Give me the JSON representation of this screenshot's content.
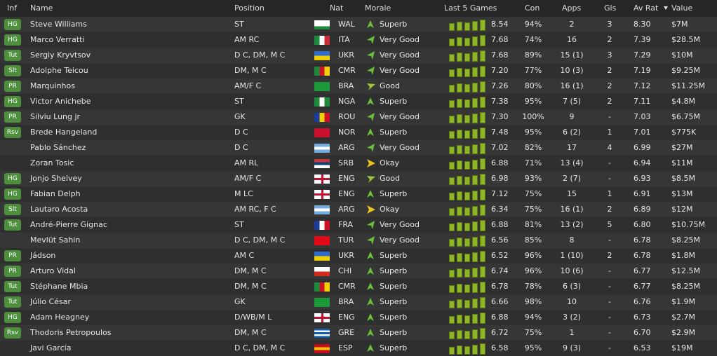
{
  "header": {
    "columns": [
      "Inf",
      "Name",
      "Position",
      "Nat",
      "Morale",
      "Last 5 Games",
      "Con",
      "Apps",
      "Gls",
      "Av Rat",
      "Value"
    ]
  },
  "table": {
    "rows": [
      {
        "inf": "HG",
        "name": "Steve Williams",
        "position": "ST",
        "nat": "WAL",
        "morale": "Superb",
        "form": "8.54",
        "con": "94%",
        "apps": "2",
        "gls": "3",
        "av_rat": "8.30",
        "value": "$7M"
      },
      {
        "inf": "HG",
        "name": "Marco Verratti",
        "position": "AM RC",
        "nat": "ITA",
        "morale": "Very Good",
        "form": "7.68",
        "con": "74%",
        "apps": "16",
        "gls": "2",
        "av_rat": "7.39",
        "value": "$28.5M"
      },
      {
        "inf": "Tut",
        "name": "Sergiy Kryvtsov",
        "position": "D C, DM, M C",
        "nat": "UKR",
        "morale": "Very Good",
        "form": "7.68",
        "con": "89%",
        "apps": "15 (1)",
        "gls": "3",
        "av_rat": "7.29",
        "value": "$10M"
      },
      {
        "inf": "Slt",
        "name": "Adolphe Teicou",
        "position": "DM, M C",
        "nat": "CMR",
        "morale": "Very Good",
        "form": "7.20",
        "con": "77%",
        "apps": "10 (3)",
        "gls": "2",
        "av_rat": "7.19",
        "value": "$9.25M"
      },
      {
        "inf": "PR",
        "name": "Marquinhos",
        "position": "AM/F C",
        "nat": "BRA",
        "morale": "Good",
        "form": "7.26",
        "con": "80%",
        "apps": "16 (1)",
        "gls": "2",
        "av_rat": "7.12",
        "value": "$11.25M"
      },
      {
        "inf": "HG",
        "name": "Victor Anichebe",
        "position": "ST",
        "nat": "NGA",
        "morale": "Superb",
        "form": "7.38",
        "con": "95%",
        "apps": "7 (5)",
        "gls": "2",
        "av_rat": "7.11",
        "value": "$4.8M"
      },
      {
        "inf": "PR",
        "name": "Silviu Lung jr",
        "position": "GK",
        "nat": "ROU",
        "morale": "Very Good",
        "form": "7.30",
        "con": "100%",
        "apps": "9",
        "gls": "-",
        "av_rat": "7.03",
        "value": "$6.75M"
      },
      {
        "inf": "Rsv",
        "name": "Brede Hangeland",
        "position": "D C",
        "nat": "NOR",
        "morale": "Superb",
        "form": "7.48",
        "con": "95%",
        "apps": "6 (2)",
        "gls": "1",
        "av_rat": "7.01",
        "value": "$775K"
      },
      {
        "inf": null,
        "name": "Pablo Sánchez",
        "position": "D C",
        "nat": "ARG",
        "morale": "Very Good",
        "form": "7.02",
        "con": "82%",
        "apps": "17",
        "gls": "4",
        "av_rat": "6.99",
        "value": "$27M"
      },
      {
        "inf": null,
        "name": "Zoran Tosic",
        "position": "AM RL",
        "nat": "SRB",
        "morale": "Okay",
        "form": "6.88",
        "con": "71%",
        "apps": "13 (4)",
        "gls": "-",
        "av_rat": "6.94",
        "value": "$11M"
      },
      {
        "inf": "HG",
        "name": "Jonjo Shelvey",
        "position": "AM/F C",
        "nat": "ENG",
        "morale": "Good",
        "form": "6.98",
        "con": "93%",
        "apps": "2 (7)",
        "gls": "-",
        "av_rat": "6.93",
        "value": "$8.5M"
      },
      {
        "inf": "HG",
        "name": "Fabian Delph",
        "position": "M LC",
        "nat": "ENG",
        "morale": "Superb",
        "form": "7.12",
        "con": "75%",
        "apps": "15",
        "gls": "1",
        "av_rat": "6.91",
        "value": "$13M"
      },
      {
        "inf": "Slt",
        "name": "Lautaro Acosta",
        "position": "AM RC, F C",
        "nat": "ARG",
        "morale": "Okay",
        "form": "6.34",
        "con": "75%",
        "apps": "16 (1)",
        "gls": "2",
        "av_rat": "6.89",
        "value": "$12M"
      },
      {
        "inf": "Tut",
        "name": "André-Pierre Gignac",
        "position": "ST",
        "nat": "FRA",
        "morale": "Very Good",
        "form": "6.88",
        "con": "81%",
        "apps": "13 (2)",
        "gls": "5",
        "av_rat": "6.80",
        "value": "$10.75M"
      },
      {
        "inf": null,
        "name": "Mevlüt Sahin",
        "position": "D C, DM, M C",
        "nat": "TUR",
        "morale": "Very Good",
        "form": "6.56",
        "con": "85%",
        "apps": "8",
        "gls": "-",
        "av_rat": "6.78",
        "value": "$8.25M"
      },
      {
        "inf": "PR",
        "name": "Jádson",
        "position": "AM C",
        "nat": "UKR",
        "morale": "Superb",
        "form": "6.52",
        "con": "96%",
        "apps": "1 (10)",
        "gls": "2",
        "av_rat": "6.78",
        "value": "$1.8M"
      },
      {
        "inf": "PR",
        "name": "Arturo Vidal",
        "position": "DM, M C",
        "nat": "CHI",
        "morale": "Superb",
        "form": "6.74",
        "con": "96%",
        "apps": "10 (6)",
        "gls": "-",
        "av_rat": "6.77",
        "value": "$12.5M"
      },
      {
        "inf": "Tut",
        "name": "Stéphane Mbia",
        "position": "DM, M C",
        "nat": "CMR",
        "morale": "Superb",
        "form": "6.78",
        "con": "78%",
        "apps": "6 (3)",
        "gls": "-",
        "av_rat": "6.77",
        "value": "$8.25M"
      },
      {
        "inf": "Tut",
        "name": "Júlio César",
        "position": "GK",
        "nat": "BRA",
        "morale": "Superb",
        "form": "6.66",
        "con": "98%",
        "apps": "10",
        "gls": "-",
        "av_rat": "6.76",
        "value": "$1.9M"
      },
      {
        "inf": "HG",
        "name": "Adam Heagney",
        "position": "D/WB/M L",
        "nat": "ENG",
        "morale": "Superb",
        "form": "6.88",
        "con": "94%",
        "apps": "3 (2)",
        "gls": "-",
        "av_rat": "6.73",
        "value": "$2.7M"
      },
      {
        "inf": "Rsv",
        "name": "Thodoris Petropoulos",
        "position": "DM, M C",
        "nat": "GRE",
        "morale": "Superb",
        "form": "6.72",
        "con": "75%",
        "apps": "1",
        "gls": "-",
        "av_rat": "6.70",
        "value": "$2.9M"
      },
      {
        "inf": null,
        "name": "Javi García",
        "position": "D C, DM, M C",
        "nat": "ESP",
        "morale": "Superb",
        "form": "6.58",
        "con": "95%",
        "apps": "9 (3)",
        "gls": "-",
        "av_rat": "6.53",
        "value": "$19M"
      }
    ]
  }
}
